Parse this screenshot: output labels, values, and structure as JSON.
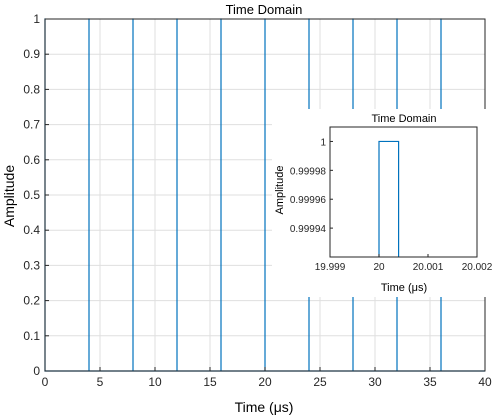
{
  "chart_data": [
    {
      "type": "line",
      "title": "Time Domain",
      "xlabel": "Time (μs)",
      "ylabel": "Amplitude",
      "xlim": [
        0,
        40
      ],
      "ylim": [
        0,
        1
      ],
      "xticks": [
        0,
        5,
        10,
        15,
        20,
        25,
        30,
        35,
        40
      ],
      "xtick_labels": [
        "0",
        "5",
        "10",
        "15",
        "20",
        "25",
        "30",
        "35",
        "40"
      ],
      "yticks": [
        0,
        0.1,
        0.2,
        0.3,
        0.4,
        0.5,
        0.6,
        0.7,
        0.8,
        0.9,
        1
      ],
      "ytick_labels": [
        "0",
        "0.1",
        "0.2",
        "0.3",
        "0.4",
        "0.5",
        "0.6",
        "0.7",
        "0.8",
        "0.9",
        "1"
      ],
      "grid": true,
      "series": [
        {
          "color": "#0072BD",
          "pulse_times": [
            0,
            4,
            8,
            12,
            16,
            20,
            24,
            28,
            32,
            36
          ],
          "pulse_width": 0.0004,
          "amplitude": 1,
          "x_end": 40
        }
      ]
    },
    {
      "type": "line",
      "title": "Time Domain",
      "xlabel": "Time (μs)",
      "ylabel": "Amplitude",
      "xlim": [
        19.999,
        20.002
      ],
      "ylim": [
        0.99992,
        1.00001
      ],
      "xticks": [
        19.999,
        20,
        20.001,
        20.002
      ],
      "xtick_labels": [
        "19.999",
        "20",
        "20.001",
        "20.002"
      ],
      "yticks": [
        0.99994,
        0.99996,
        0.99998,
        1
      ],
      "ytick_labels": [
        "0.99994",
        "0.99996",
        "0.99998",
        "1"
      ],
      "grid": false,
      "series": [
        {
          "color": "#0072BD",
          "x": [
            20,
            20,
            20.0004,
            20.0004
          ],
          "y": [
            0.99992,
            1,
            1,
            0.99992
          ]
        }
      ]
    }
  ]
}
